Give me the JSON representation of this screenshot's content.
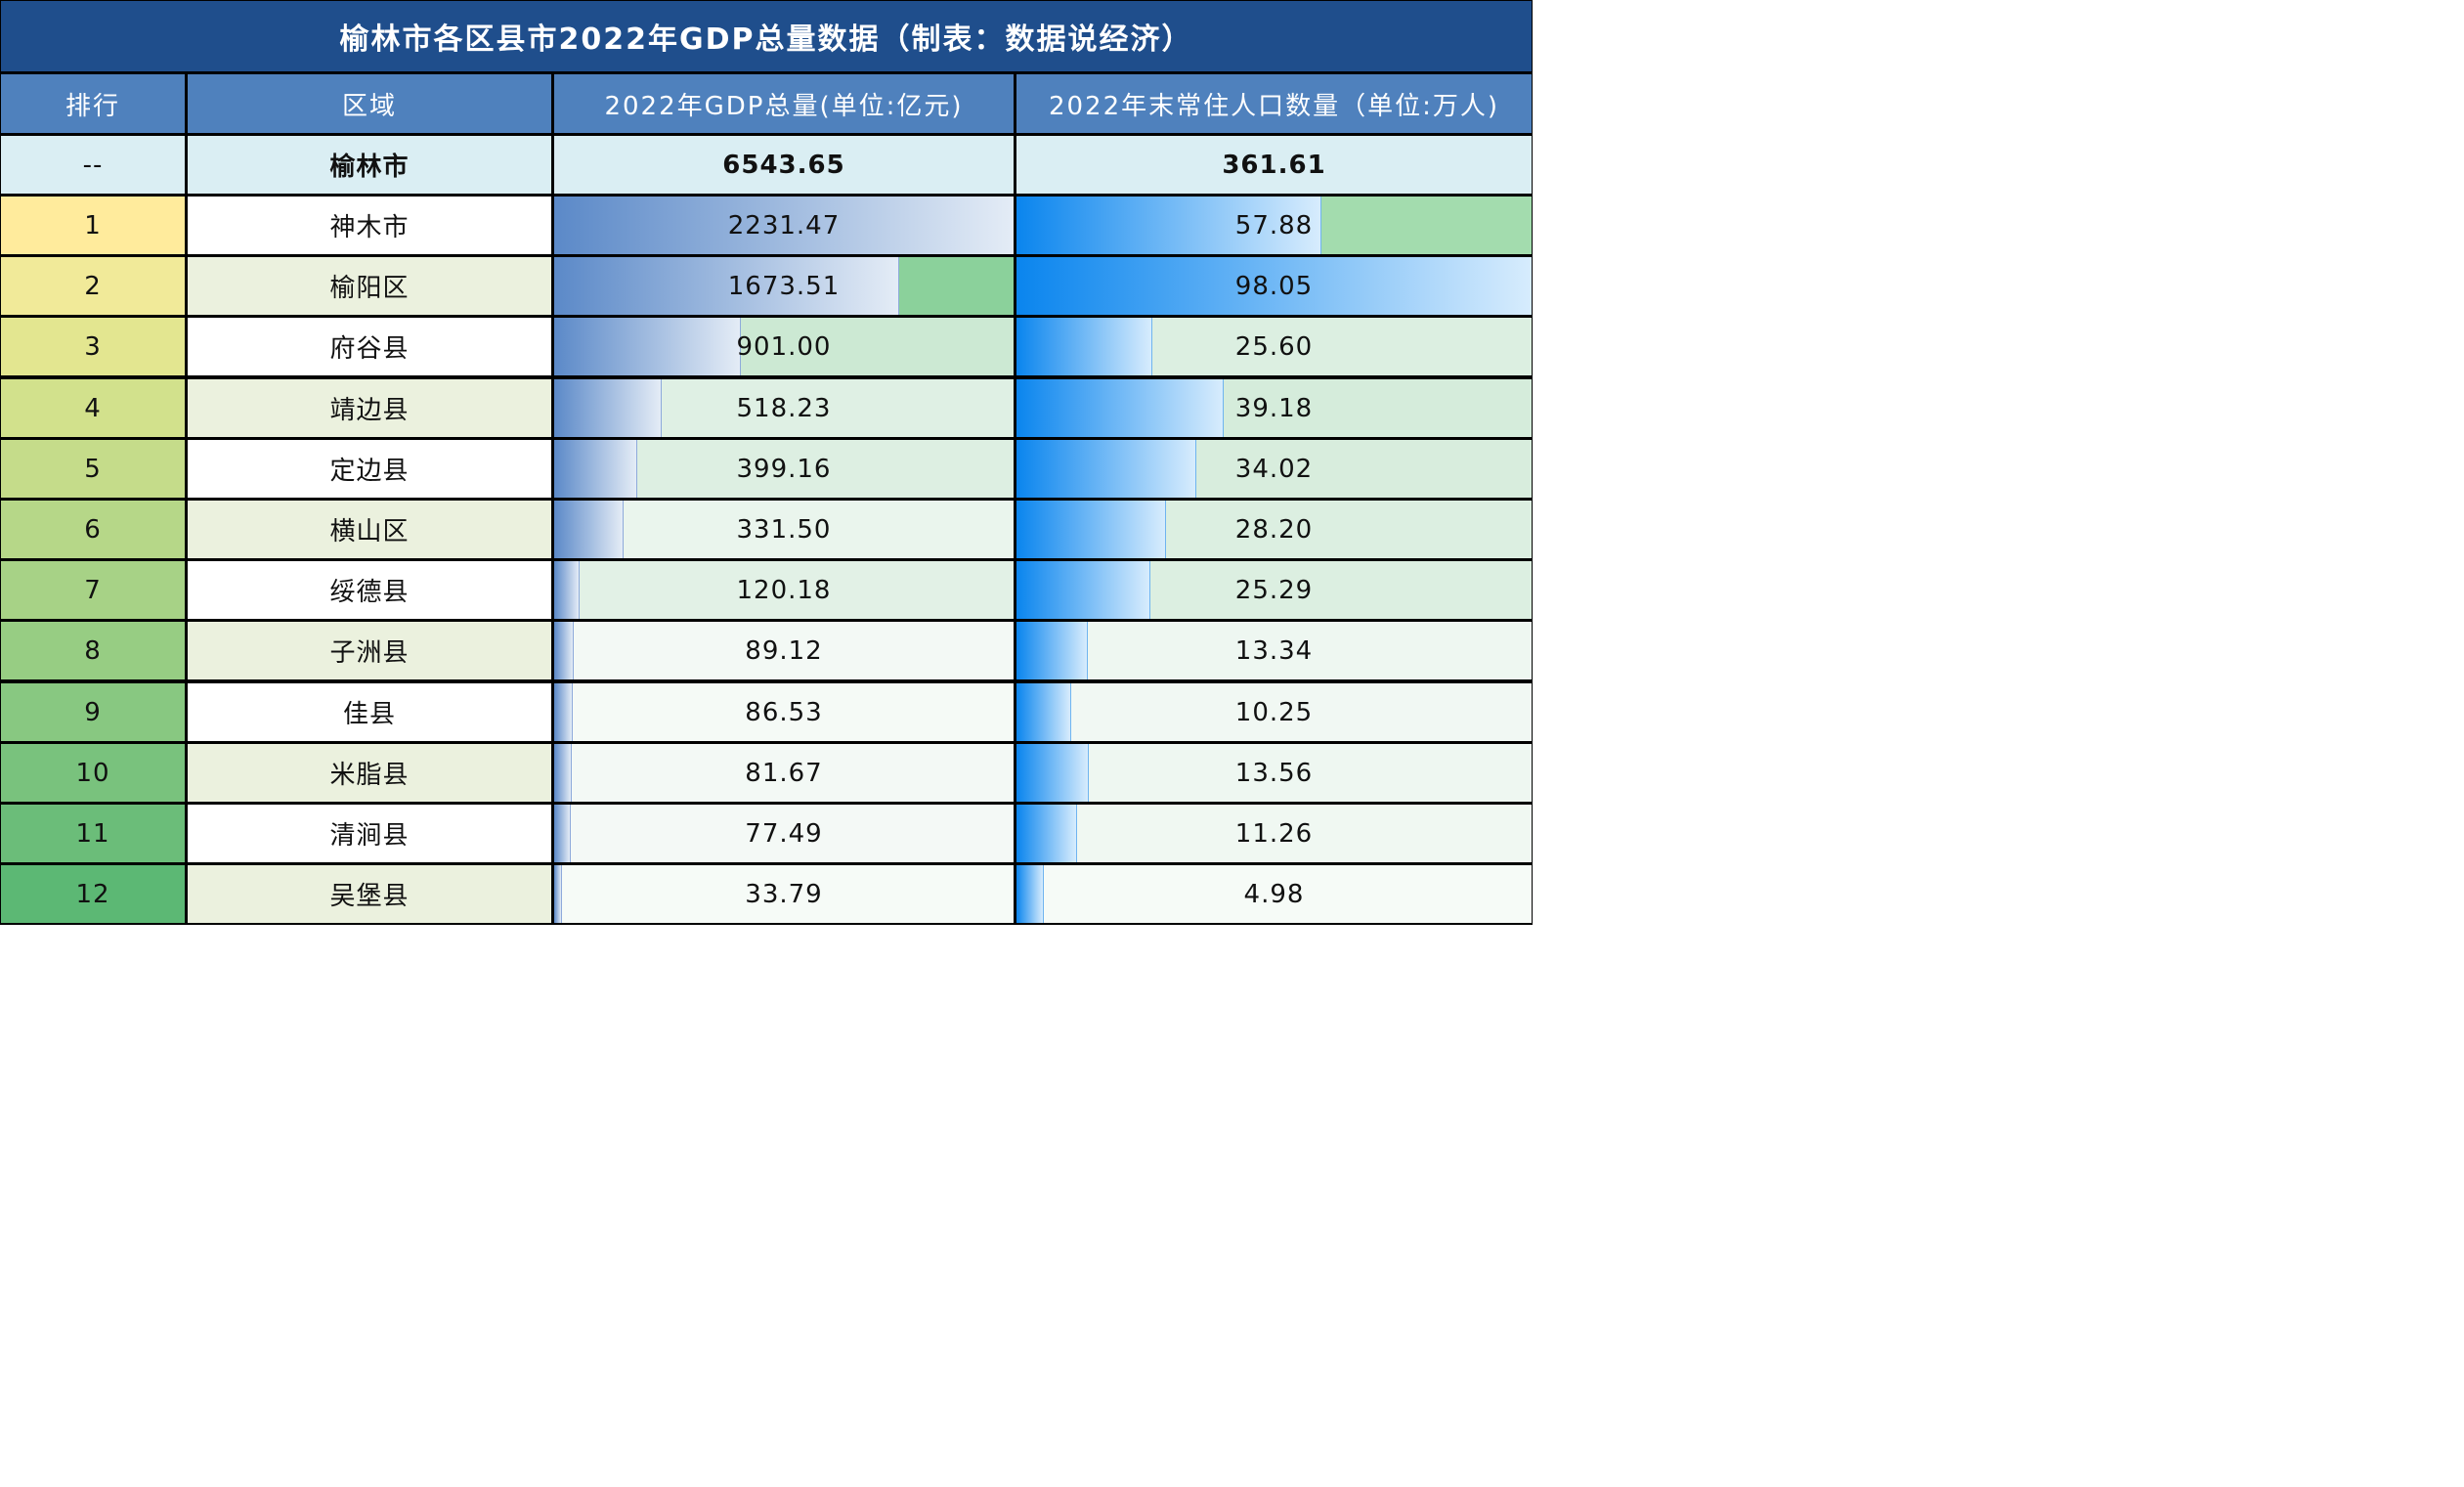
{
  "title": "榆林市各区县市2022年GDP总量数据（制表：数据说经济）",
  "headers": {
    "rank": "排行",
    "region": "区域",
    "gdp": "2022年GDP总量(单位:亿元)",
    "pop": "2022年末常住人口数量（单位:万人)"
  },
  "total": {
    "rank": "--",
    "region": "榆林市",
    "gdp": "6543.65",
    "pop": "361.61"
  },
  "chart_data": {
    "type": "table",
    "title": "榆林市各区县市2022年GDP总量数据（制表：数据说经济）",
    "columns": [
      "排行",
      "区域",
      "2022年GDP总量(单位:亿元)",
      "2022年末常住人口数量（单位:万人)"
    ],
    "rows": [
      {
        "rank": "1",
        "region": "神木市",
        "gdp": "2231.47",
        "pop": "57.88"
      },
      {
        "rank": "2",
        "region": "榆阳区",
        "gdp": "1673.51",
        "pop": "98.05"
      },
      {
        "rank": "3",
        "region": "府谷县",
        "gdp": "901.00",
        "pop": "25.60"
      },
      {
        "rank": "4",
        "region": "靖边县",
        "gdp": "518.23",
        "pop": "39.18"
      },
      {
        "rank": "5",
        "region": "定边县",
        "gdp": "399.16",
        "pop": "34.02"
      },
      {
        "rank": "6",
        "region": "横山区",
        "gdp": "331.50",
        "pop": "28.20"
      },
      {
        "rank": "7",
        "region": "绥德县",
        "gdp": "120.18",
        "pop": "25.29"
      },
      {
        "rank": "8",
        "region": "子洲县",
        "gdp": "89.12",
        "pop": "13.34"
      },
      {
        "rank": "9",
        "region": "佳县",
        "gdp": "86.53",
        "pop": "10.25"
      },
      {
        "rank": "10",
        "region": "米脂县",
        "gdp": "81.67",
        "pop": "13.56"
      },
      {
        "rank": "11",
        "region": "清涧县",
        "gdp": "77.49",
        "pop": "11.26"
      },
      {
        "rank": "12",
        "region": "吴堡县",
        "gdp": "33.79",
        "pop": "4.98"
      }
    ],
    "data_bars": {
      "gdp_max": 2231.47,
      "pop_max": 98.05
    }
  },
  "colors": {
    "title_bg": "#1f4e8c",
    "header_bg": "#4f81bd",
    "total_bg": "#daeef3",
    "rank_gradient": [
      "#ffeb9c",
      "#f1ea99",
      "#e3e690",
      "#d2e18c",
      "#c5dc8a",
      "#b6d788",
      "#a7d286",
      "#97cd83",
      "#88c881",
      "#79c27d",
      "#6bbd79",
      "#5cb874"
    ],
    "region_bg": [
      "#ffffff",
      "#ebf1de"
    ],
    "cell_bg": [
      "#98d4a3",
      "#8bd19b",
      "#cce9d3",
      "#dff0e4",
      "#ddefe2",
      "#eaf5ed",
      "#e2f1e6",
      "#f3f9f5",
      "#f5faf6",
      "#f3f9f5",
      "#f4f9f6",
      "#f6fbf7"
    ],
    "cell_bg_pop": [
      "#a3dcae",
      "#8bd19b",
      "#dcefe1",
      "#d5ecdb",
      "#d8eddd",
      "#dcefe1",
      "#dcefe1",
      "#eef7f1",
      "#f1f8f3",
      "#eef7f1",
      "#f0f8f2",
      "#f6fbf7"
    ]
  }
}
